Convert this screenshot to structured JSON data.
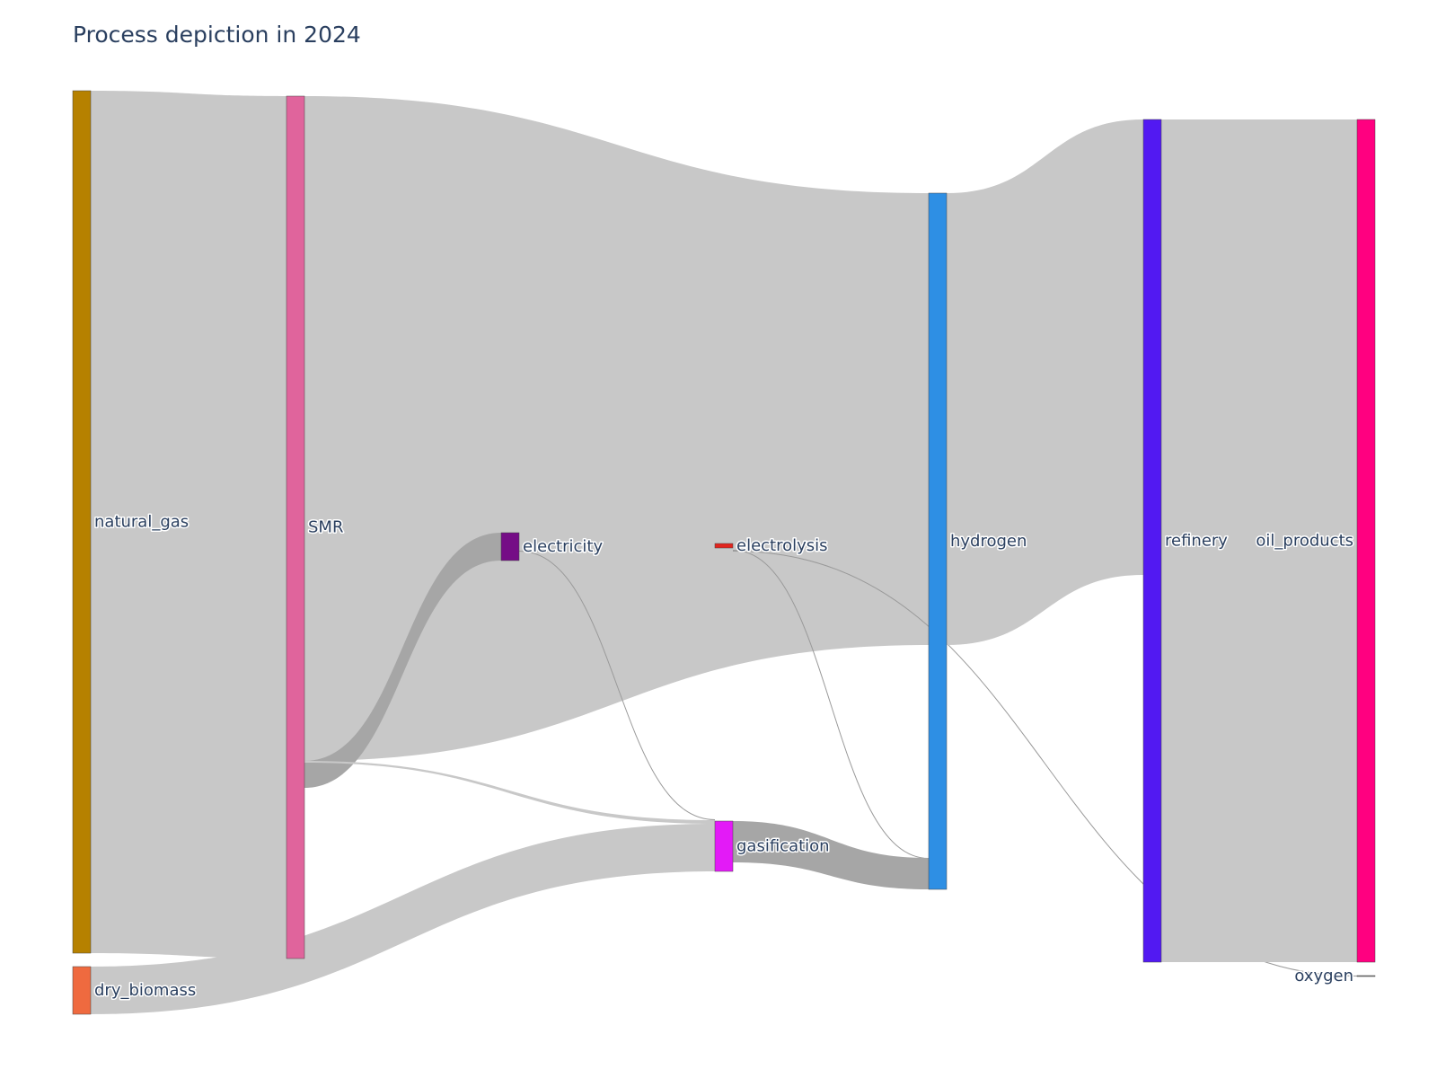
{
  "title": "Process depiction in 2024",
  "link_color": "#c8c8c8",
  "link_highlight_color": "#a6a6a6",
  "node_border_color": "#444444",
  "chart_data": {
    "type": "sankey",
    "title": "Process depiction in 2024",
    "nodes": [
      {
        "id": "natural_gas",
        "label": "natural_gas",
        "color": "#B68100",
        "column": 0
      },
      {
        "id": "dry_biomass",
        "label": "dry_biomass",
        "color": "#EF6A3F",
        "column": 0
      },
      {
        "id": "SMR",
        "label": "SMR",
        "color": "#E0649C",
        "column": 1
      },
      {
        "id": "electricity",
        "label": "electricity",
        "color": "#750D86",
        "column": 2
      },
      {
        "id": "electrolysis",
        "label": "electrolysis",
        "color": "#E2251E",
        "column": 3
      },
      {
        "id": "gasification",
        "label": "gasification",
        "color": "#E31AF7",
        "column": 3
      },
      {
        "id": "hydrogen",
        "label": "hydrogen",
        "color": "#2E8FE4",
        "column": 4
      },
      {
        "id": "refinery",
        "label": "refinery",
        "color": "#5219F2",
        "column": 5
      },
      {
        "id": "oil_products",
        "label": "oil_products",
        "color": "#FF0080",
        "column": 6
      },
      {
        "id": "oxygen",
        "label": "oxygen",
        "color": "#7F7F7F",
        "column": 6
      }
    ],
    "links": [
      {
        "source": "natural_gas",
        "target": "SMR",
        "value": 1000
      },
      {
        "source": "dry_biomass",
        "target": "gasification",
        "value": 55
      },
      {
        "source": "SMR",
        "target": "hydrogen",
        "value": 700
      },
      {
        "source": "SMR",
        "target": "electricity",
        "value": 30
      },
      {
        "source": "SMR",
        "target": "gasification",
        "value": 3
      },
      {
        "source": "electricity",
        "target": "electrolysis",
        "value": 5
      },
      {
        "source": "electricity",
        "target": "gasification",
        "value": 1
      },
      {
        "source": "electrolysis",
        "target": "hydrogen",
        "value": 1
      },
      {
        "source": "electrolysis",
        "target": "oxygen",
        "value": 1
      },
      {
        "source": "gasification",
        "target": "hydrogen",
        "value": 40
      },
      {
        "source": "hydrogen",
        "target": "refinery",
        "value": 530
      },
      {
        "source": "refinery",
        "target": "oil_products",
        "value": 980
      }
    ]
  }
}
